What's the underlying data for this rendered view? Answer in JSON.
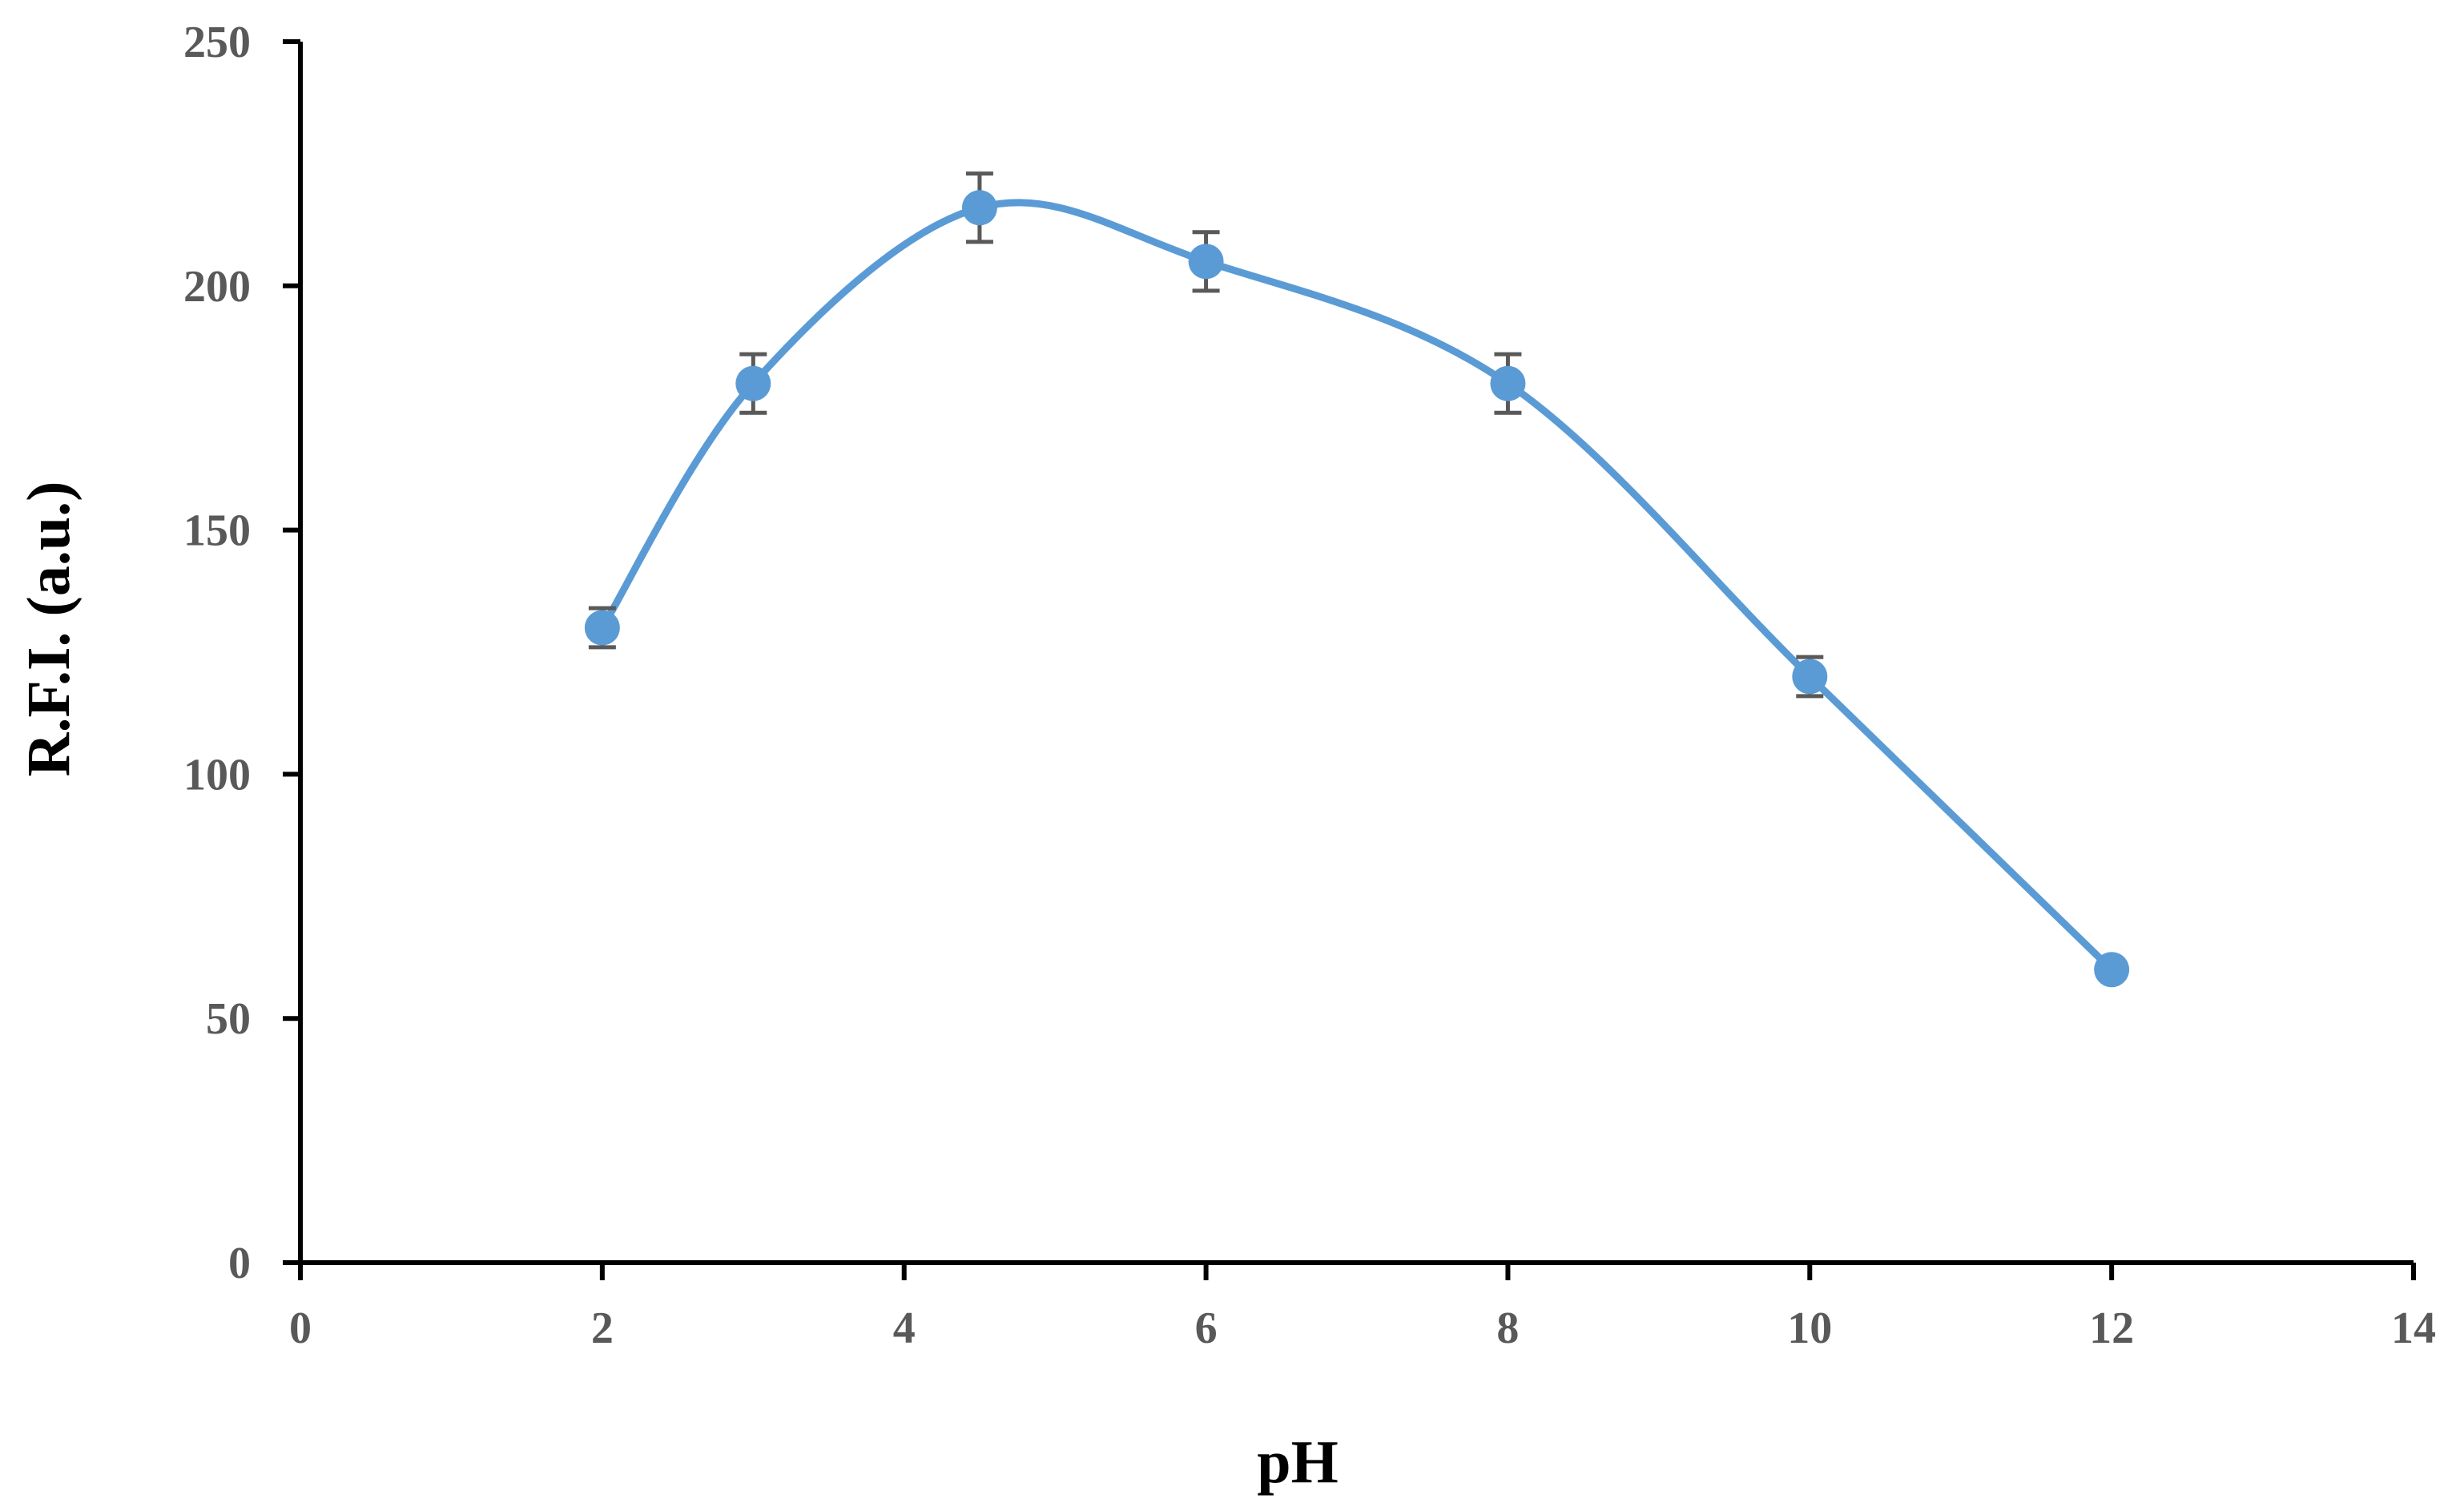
{
  "chart_data": {
    "type": "scatter",
    "title": "",
    "xlabel": "pH",
    "ylabel": "R.F.I. (a.u.)",
    "xlim": [
      0,
      14
    ],
    "ylim": [
      0,
      250
    ],
    "xticks": [
      0,
      2,
      4,
      6,
      8,
      10,
      12,
      14
    ],
    "yticks": [
      0,
      50,
      100,
      150,
      200,
      250
    ],
    "smooth_line": true,
    "grid": false,
    "legend": "none",
    "series": [
      {
        "color": "#5B9BD5",
        "x": [
          2,
          3,
          4.5,
          6,
          8,
          10,
          12
        ],
        "y": [
          130,
          180,
          216,
          205,
          180,
          120,
          60
        ],
        "error": [
          4,
          6,
          7,
          6,
          6,
          4,
          0
        ]
      }
    ]
  }
}
